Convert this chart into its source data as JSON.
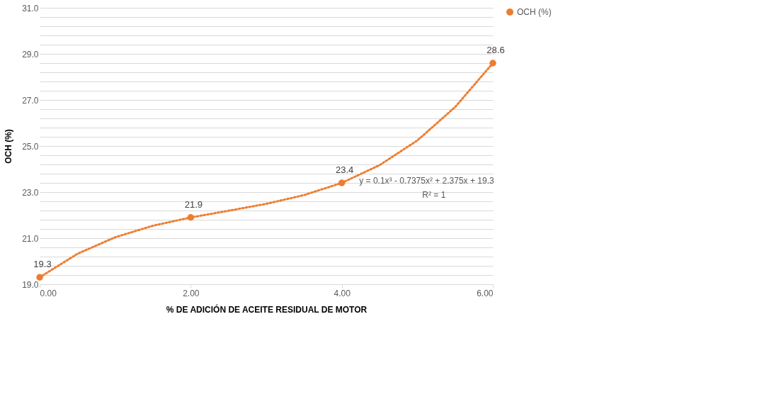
{
  "chart_data": {
    "type": "scatter",
    "xlabel": "% DE ADICIÓN DE ACEITE RESIDUAL DE MOTOR",
    "ylabel": "OCH (%)",
    "series": [
      {
        "name": "OCH (%)",
        "color": "#ed7d31",
        "x": [
          0,
          2,
          4,
          6
        ],
        "values": [
          19.3,
          21.9,
          23.4,
          28.6
        ],
        "data_labels": true,
        "marker": "circle"
      },
      {
        "type": "line",
        "color": "#ed7d31",
        "line_style": "dotted",
        "x": [
          0,
          0.5,
          1,
          1.5,
          2,
          2.5,
          3,
          3.5,
          4,
          4.5,
          5,
          5.5,
          6
        ],
        "values": [
          19.3,
          20.32,
          21.04,
          21.54,
          21.9,
          22.19,
          22.49,
          22.87,
          23.4,
          24.17,
          25.24,
          26.69,
          28.6
        ]
      }
    ],
    "annotations": [
      "y = 0.1x³ - 0.7375x² + 2.375x + 19.3",
      "R² = 1"
    ],
    "xlim": [
      0,
      6
    ],
    "xticks": [
      {
        "value": 0,
        "label": "0.00"
      },
      {
        "value": 2,
        "label": "2.00"
      },
      {
        "value": 4,
        "label": "4.00"
      },
      {
        "value": 6,
        "label": "6.00"
      }
    ],
    "ylim": [
      19,
      31
    ],
    "yticks": [
      {
        "value": 19,
        "label": "19.0"
      },
      {
        "value": 19.4,
        "label": null
      },
      {
        "value": 19.8,
        "label": null
      },
      {
        "value": 20.2,
        "label": null
      },
      {
        "value": 20.6,
        "label": null
      },
      {
        "value": 21,
        "label": "21.0"
      },
      {
        "value": 21.4,
        "label": null
      },
      {
        "value": 21.8,
        "label": null
      },
      {
        "value": 22.2,
        "label": null
      },
      {
        "value": 22.6,
        "label": null
      },
      {
        "value": 23,
        "label": "23.0"
      },
      {
        "value": 23.4,
        "label": null
      },
      {
        "value": 23.8,
        "label": null
      },
      {
        "value": 24.2,
        "label": null
      },
      {
        "value": 24.6,
        "label": null
      },
      {
        "value": 25,
        "label": "25.0"
      },
      {
        "value": 25.4,
        "label": null
      },
      {
        "value": 25.8,
        "label": null
      },
      {
        "value": 26.2,
        "label": null
      },
      {
        "value": 26.6,
        "label": null
      },
      {
        "value": 27,
        "label": "27.0"
      },
      {
        "value": 27.4,
        "label": null
      },
      {
        "value": 27.8,
        "label": null
      },
      {
        "value": 28.2,
        "label": null
      },
      {
        "value": 28.6,
        "label": null
      },
      {
        "value": 29,
        "label": "29.0"
      },
      {
        "value": 29.4,
        "label": null
      },
      {
        "value": 29.8,
        "label": null
      },
      {
        "value": 30.2,
        "label": null
      },
      {
        "value": 30.6,
        "label": null
      },
      {
        "value": 31,
        "label": "31.0"
      }
    ],
    "grid": "y",
    "legend": "right"
  }
}
